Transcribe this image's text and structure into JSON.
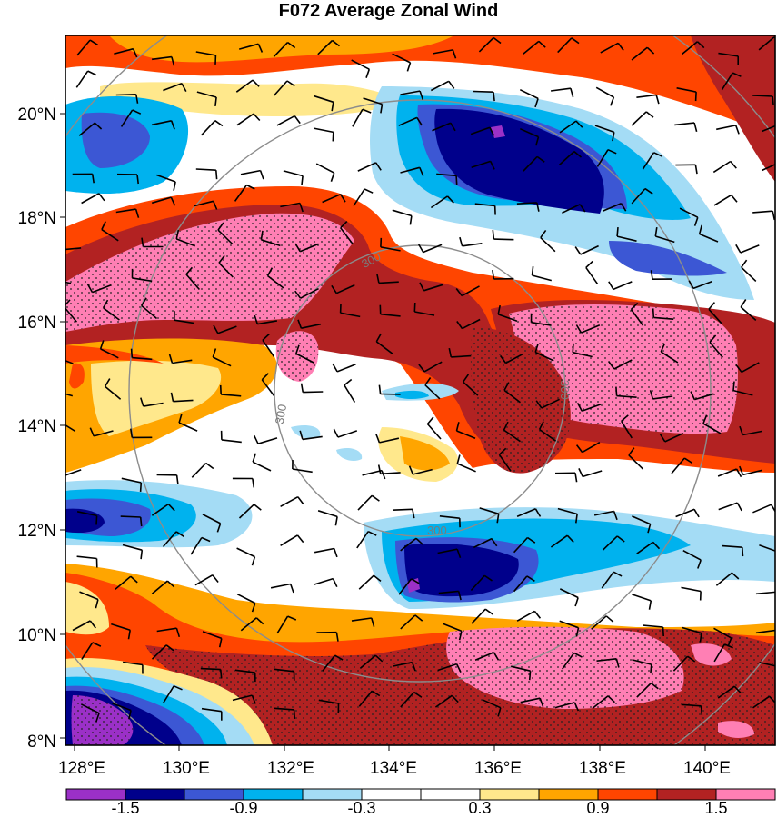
{
  "title": "F072 Average Zonal Wind",
  "map": {
    "lon_range": [
      128,
      141.2
    ],
    "lat_range": [
      8,
      21.5
    ],
    "lon_ticks": [
      "128°E",
      "130°E",
      "132°E",
      "134°E",
      "136°E",
      "138°E",
      "140°E"
    ],
    "lat_ticks": [
      "8°N",
      "10°N",
      "12°N",
      "14°N",
      "16°N",
      "18°N",
      "20°N"
    ],
    "ring_labels": [
      "300",
      "300",
      "300",
      "300"
    ],
    "stippling": "dots over regions above the 1.5 contour and below the -1.5 contour",
    "overlay": "wind barbs"
  },
  "colorbar": {
    "levels": [
      "-1.5",
      "-0.9",
      "-0.3",
      "0.3",
      "0.9",
      "1.5"
    ],
    "colors": [
      "#9b30c7",
      "#00008b",
      "#3c57d4",
      "#00b2ee",
      "#a4dcf5",
      "#ffffff",
      "#ffffff",
      "#ffe88c",
      "#ffa500",
      "#ff4500",
      "#b22222",
      "#ff7fb4"
    ]
  }
}
